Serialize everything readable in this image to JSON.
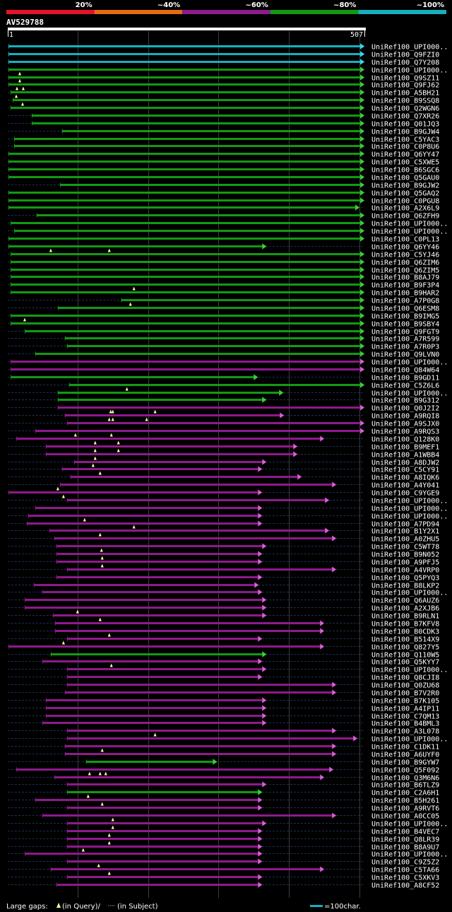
{
  "header": {
    "query_id": "AV529788",
    "ruler_start": "1",
    "ruler_end": "507",
    "ruler_min": 1,
    "ruler_max": 507,
    "scale": [
      {
        "label": "20%",
        "color": "#e8112d"
      },
      {
        "label": "~40%",
        "color": "#e46b0f"
      },
      {
        "label": "~60%",
        "color": "#8e1a8c"
      },
      {
        "label": "~80%",
        "color": "#139a13"
      },
      {
        "label": "~100%",
        "color": "#15b0c0"
      }
    ]
  },
  "hits": [
    {
      "name": "UniRef100_UPI000..",
      "color": "cyan",
      "start": 2,
      "end": 507,
      "gaps": []
    },
    {
      "name": "UniRef100_Q9FZI0",
      "color": "cyan",
      "start": 2,
      "end": 507,
      "gaps": []
    },
    {
      "name": "UniRef100_Q7Y208",
      "color": "cyan",
      "start": 2,
      "end": 507,
      "gaps": []
    },
    {
      "name": "UniRef100_UPI000..",
      "color": "green",
      "start": 2,
      "end": 507,
      "gaps": []
    },
    {
      "name": "UniRef100_Q9SZ11",
      "color": "green",
      "start": 2,
      "end": 507,
      "gaps": [
        18
      ]
    },
    {
      "name": "UniRef100_Q9FJ62",
      "color": "green",
      "start": 2,
      "end": 507,
      "gaps": [
        18
      ]
    },
    {
      "name": "UniRef100_A5BH21",
      "color": "green",
      "start": 5,
      "end": 507,
      "gaps": [
        14,
        23
      ]
    },
    {
      "name": "UniRef100_B9SSQ8",
      "color": "green",
      "start": 8,
      "end": 507,
      "gaps": [
        13
      ]
    },
    {
      "name": "UniRef100_Q2WGN6",
      "color": "green",
      "start": 5,
      "end": 507,
      "gaps": [
        22
      ]
    },
    {
      "name": "UniRef100_Q7XR26",
      "color": "green",
      "start": 35,
      "end": 507,
      "gaps": []
    },
    {
      "name": "UniRef100_Q01JQ3",
      "color": "green",
      "start": 35,
      "end": 507,
      "gaps": []
    },
    {
      "name": "UniRef100_B9GJW4",
      "color": "green",
      "start": 78,
      "end": 507,
      "gaps": []
    },
    {
      "name": "UniRef100_C5YAC3",
      "color": "green",
      "start": 10,
      "end": 507,
      "gaps": []
    },
    {
      "name": "UniRef100_C0P8U6",
      "color": "green",
      "start": 10,
      "end": 507,
      "gaps": []
    },
    {
      "name": "UniRef100_Q6YY47",
      "color": "green",
      "start": 2,
      "end": 507,
      "gaps": []
    },
    {
      "name": "UniRef100_C5XWE5",
      "color": "green",
      "start": 2,
      "end": 507,
      "gaps": []
    },
    {
      "name": "UniRef100_B6SGC6",
      "color": "green",
      "start": 2,
      "end": 507,
      "gaps": []
    },
    {
      "name": "UniRef100_Q5GAU0",
      "color": "green",
      "start": 2,
      "end": 507,
      "gaps": []
    },
    {
      "name": "UniRef100_B9GJW2",
      "color": "green",
      "start": 75,
      "end": 507,
      "gaps": []
    },
    {
      "name": "UniRef100_Q5GAQ2",
      "color": "green",
      "start": 2,
      "end": 507,
      "gaps": []
    },
    {
      "name": "UniRef100_C0PGU8",
      "color": "green",
      "start": 2,
      "end": 507,
      "gaps": []
    },
    {
      "name": "UniRef100_A2X6L9",
      "color": "green",
      "start": 2,
      "end": 500,
      "gaps": []
    },
    {
      "name": "UniRef100_Q6ZFH9",
      "color": "green",
      "start": 42,
      "end": 507,
      "gaps": []
    },
    {
      "name": "UniRef100_UPI000..",
      "color": "green",
      "start": 5,
      "end": 507,
      "gaps": []
    },
    {
      "name": "UniRef100_UPI000..",
      "color": "green",
      "start": 10,
      "end": 507,
      "gaps": []
    },
    {
      "name": "UniRef100_C0PL13",
      "color": "green",
      "start": 2,
      "end": 507,
      "gaps": []
    },
    {
      "name": "UniRef100_Q6YY46",
      "color": "green",
      "start": 2,
      "end": 368,
      "gaps": []
    },
    {
      "name": "UniRef100_C5YJ46",
      "color": "green",
      "start": 5,
      "end": 507,
      "gaps": [
        62,
        145
      ]
    },
    {
      "name": "UniRef100_Q6ZIM6",
      "color": "green",
      "start": 5,
      "end": 507,
      "gaps": []
    },
    {
      "name": "UniRef100_Q6ZIM5",
      "color": "green",
      "start": 5,
      "end": 507,
      "gaps": []
    },
    {
      "name": "UniRef100_B8AJ79",
      "color": "green",
      "start": 5,
      "end": 507,
      "gaps": []
    },
    {
      "name": "UniRef100_B9F3P4",
      "color": "green",
      "start": 5,
      "end": 507,
      "gaps": []
    },
    {
      "name": "UniRef100_B9HAR2",
      "color": "green",
      "start": 5,
      "end": 507,
      "gaps": [
        180
      ]
    },
    {
      "name": "UniRef100_A7P0G8",
      "color": "green",
      "start": 162,
      "end": 507,
      "gaps": []
    },
    {
      "name": "UniRef100_Q6ESM8",
      "color": "green",
      "start": 72,
      "end": 507,
      "gaps": [
        175
      ]
    },
    {
      "name": "UniRef100_B9IMG5",
      "color": "green",
      "start": 5,
      "end": 507,
      "gaps": []
    },
    {
      "name": "UniRef100_B9SBY4",
      "color": "green",
      "start": 5,
      "end": 507,
      "gaps": [
        25
      ]
    },
    {
      "name": "UniRef100_Q9FGT9",
      "color": "green",
      "start": 25,
      "end": 507,
      "gaps": []
    },
    {
      "name": "UniRef100_A7R599",
      "color": "green",
      "start": 82,
      "end": 507,
      "gaps": []
    },
    {
      "name": "UniRef100_A7R0P3",
      "color": "green",
      "start": 85,
      "end": 507,
      "gaps": []
    },
    {
      "name": "UniRef100_Q9LVN0",
      "color": "green",
      "start": 40,
      "end": 507,
      "gaps": []
    },
    {
      "name": "UniRef100_UPI000..",
      "color": "purple",
      "start": 5,
      "end": 507,
      "gaps": []
    },
    {
      "name": "UniRef100_Q84W64",
      "color": "purple",
      "start": 5,
      "end": 507,
      "gaps": []
    },
    {
      "name": "UniRef100_B9GD11",
      "color": "green",
      "start": 5,
      "end": 356,
      "gaps": []
    },
    {
      "name": "UniRef100_C5Z6L6",
      "color": "green",
      "start": 88,
      "end": 507,
      "gaps": []
    },
    {
      "name": "UniRef100_UPI000..",
      "color": "green",
      "start": 72,
      "end": 392,
      "gaps": [
        170
      ]
    },
    {
      "name": "UniRef100_B9G312",
      "color": "green",
      "start": 72,
      "end": 368,
      "gaps": []
    },
    {
      "name": "UniRef100_Q0J2I2",
      "color": "purple",
      "start": 72,
      "end": 507,
      "gaps": []
    },
    {
      "name": "UniRef100_A9RQI8",
      "color": "purple",
      "start": 82,
      "end": 393,
      "gaps": [
        147,
        150,
        210
      ]
    },
    {
      "name": "UniRef100_A9SJX0",
      "color": "purple",
      "start": 85,
      "end": 507,
      "gaps": [
        145,
        150,
        198
      ]
    },
    {
      "name": "UniRef100_A9RQS3",
      "color": "purple",
      "start": 40,
      "end": 507,
      "gaps": []
    },
    {
      "name": "UniRef100_Q128K0",
      "color": "purple",
      "start": 13,
      "end": 450,
      "gaps": [
        97,
        148
      ]
    },
    {
      "name": "UniRef100_B9MEF1",
      "color": "purple",
      "start": 55,
      "end": 412,
      "gaps": [
        125,
        158
      ]
    },
    {
      "name": "UniRef100_A1WBB4",
      "color": "purple",
      "start": 55,
      "end": 412,
      "gaps": [
        125,
        158
      ]
    },
    {
      "name": "UniRef100_A8DJW2",
      "color": "purple",
      "start": 95,
      "end": 368,
      "gaps": [
        125
      ]
    },
    {
      "name": "UniRef100_C5CY91",
      "color": "purple",
      "start": 78,
      "end": 362,
      "gaps": [
        122
      ]
    },
    {
      "name": "UniRef100_A8IQK6",
      "color": "purple",
      "start": 90,
      "end": 418,
      "gaps": [
        132
      ]
    },
    {
      "name": "UniRef100_A4Y041",
      "color": "purple",
      "start": 75,
      "end": 467,
      "gaps": []
    },
    {
      "name": "UniRef100_C9YGE9",
      "color": "purple",
      "start": 2,
      "end": 362,
      "gaps": [
        72
      ]
    },
    {
      "name": "UniRef100_UPI000..",
      "color": "purple",
      "start": 85,
      "end": 457,
      "gaps": [
        80
      ]
    },
    {
      "name": "UniRef100_UPI000..",
      "color": "purple",
      "start": 40,
      "end": 362,
      "gaps": []
    },
    {
      "name": "UniRef100_UPI000..",
      "color": "purple",
      "start": 30,
      "end": 362,
      "gaps": []
    },
    {
      "name": "UniRef100_A7PD94",
      "color": "purple",
      "start": 28,
      "end": 362,
      "gaps": [
        110
      ]
    },
    {
      "name": "UniRef100_B1Y2X1",
      "color": "purple",
      "start": 60,
      "end": 457,
      "gaps": [
        180
      ]
    },
    {
      "name": "UniRef100_A0ZHU5",
      "color": "purple",
      "start": 67,
      "end": 467,
      "gaps": [
        132
      ]
    },
    {
      "name": "UniRef100_C5WT78",
      "color": "purple",
      "start": 70,
      "end": 368,
      "gaps": []
    },
    {
      "name": "UniRef100_B9N052",
      "color": "purple",
      "start": 70,
      "end": 362,
      "gaps": [
        134
      ]
    },
    {
      "name": "UniRef100_A9PFJ5",
      "color": "purple",
      "start": 70,
      "end": 362,
      "gaps": [
        135
      ]
    },
    {
      "name": "UniRef100_A4VRP0",
      "color": "purple",
      "start": 85,
      "end": 467,
      "gaps": [
        135
      ]
    },
    {
      "name": "UniRef100_Q5PYQ3",
      "color": "purple",
      "start": 70,
      "end": 362,
      "gaps": []
    },
    {
      "name": "UniRef100_B8LKP2",
      "color": "purple",
      "start": 38,
      "end": 357,
      "gaps": []
    },
    {
      "name": "UniRef100_UPI000..",
      "color": "purple",
      "start": 50,
      "end": 362,
      "gaps": []
    },
    {
      "name": "UniRef100_Q6AUZ6",
      "color": "purple",
      "start": 25,
      "end": 368,
      "gaps": []
    },
    {
      "name": "UniRef100_A2XJB6",
      "color": "purple",
      "start": 25,
      "end": 368,
      "gaps": []
    },
    {
      "name": "UniRef100_B9RLN1",
      "color": "purple",
      "start": 65,
      "end": 368,
      "gaps": [
        100
      ]
    },
    {
      "name": "UniRef100_B7KFV8",
      "color": "purple",
      "start": 68,
      "end": 450,
      "gaps": [
        132
      ]
    },
    {
      "name": "UniRef100_B0CDK3",
      "color": "purple",
      "start": 68,
      "end": 450,
      "gaps": []
    },
    {
      "name": "UniRef100_B514X9",
      "color": "purple",
      "start": 85,
      "end": 362,
      "gaps": [
        145
      ]
    },
    {
      "name": "UniRef100_Q827Y5",
      "color": "purple",
      "start": 2,
      "end": 450,
      "gaps": [
        80
      ]
    },
    {
      "name": "UniRef100_Q110W5",
      "color": "green",
      "start": 62,
      "end": 368,
      "gaps": []
    },
    {
      "name": "UniRef100_Q5KYY7",
      "color": "purple",
      "start": 50,
      "end": 362,
      "gaps": []
    },
    {
      "name": "UniRef100_UPI000..",
      "color": "purple",
      "start": 85,
      "end": 368,
      "gaps": [
        148
      ]
    },
    {
      "name": "UniRef100_Q8CJI8",
      "color": "purple",
      "start": 85,
      "end": 362,
      "gaps": []
    },
    {
      "name": "UniRef100_Q0ZU68",
      "color": "purple",
      "start": 85,
      "end": 467,
      "gaps": []
    },
    {
      "name": "UniRef100_B7V2R0",
      "color": "purple",
      "start": 82,
      "end": 467,
      "gaps": []
    },
    {
      "name": "UniRef100_B7K105",
      "color": "purple",
      "start": 55,
      "end": 368,
      "gaps": []
    },
    {
      "name": "UniRef100_A4IP11",
      "color": "purple",
      "start": 55,
      "end": 368,
      "gaps": []
    },
    {
      "name": "UniRef100_C7QM13",
      "color": "purple",
      "start": 55,
      "end": 368,
      "gaps": []
    },
    {
      "name": "UniRef100_B4BML3",
      "color": "purple",
      "start": 50,
      "end": 368,
      "gaps": []
    },
    {
      "name": "UniRef100_A3L078",
      "color": "purple",
      "start": 85,
      "end": 467,
      "gaps": []
    },
    {
      "name": "UniRef100_UPI000..",
      "color": "purple",
      "start": 85,
      "end": 497,
      "gaps": [
        210
      ]
    },
    {
      "name": "UniRef100_C1DK11",
      "color": "purple",
      "start": 82,
      "end": 467,
      "gaps": []
    },
    {
      "name": "UniRef100_A6UYF0",
      "color": "purple",
      "start": 82,
      "end": 467,
      "gaps": [
        135
      ]
    },
    {
      "name": "UniRef100_B9GYW7",
      "color": "green",
      "start": 112,
      "end": 298,
      "gaps": []
    },
    {
      "name": "UniRef100_Q5F092",
      "color": "purple",
      "start": 13,
      "end": 463,
      "gaps": []
    },
    {
      "name": "UniRef100_Q3M6N6",
      "color": "purple",
      "start": 67,
      "end": 450,
      "gaps": [
        117,
        132,
        140
      ]
    },
    {
      "name": "UniRef100_B6TLZ9",
      "color": "purple",
      "start": 85,
      "end": 368,
      "gaps": []
    },
    {
      "name": "UniRef100_C2A6H1",
      "color": "green",
      "start": 85,
      "end": 362,
      "gaps": []
    },
    {
      "name": "UniRef100_B5H261",
      "color": "purple",
      "start": 40,
      "end": 362,
      "gaps": [
        115
      ]
    },
    {
      "name": "UniRef100_A9RVT6",
      "color": "purple",
      "start": 85,
      "end": 362,
      "gaps": [
        135
      ]
    },
    {
      "name": "UniRef100_A0CC05",
      "color": "purple",
      "start": 50,
      "end": 467,
      "gaps": []
    },
    {
      "name": "UniRef100_UPI000..",
      "color": "purple",
      "start": 85,
      "end": 368,
      "gaps": [
        150
      ]
    },
    {
      "name": "UniRef100_B4VEC7",
      "color": "purple",
      "start": 85,
      "end": 362,
      "gaps": [
        150
      ]
    },
    {
      "name": "UniRef100_Q8LR39",
      "color": "purple",
      "start": 85,
      "end": 362,
      "gaps": [
        145
      ]
    },
    {
      "name": "UniRef100_B8A9U7",
      "color": "purple",
      "start": 85,
      "end": 362,
      "gaps": [
        145
      ]
    },
    {
      "name": "UniRef100_UPI000..",
      "color": "purple",
      "start": 25,
      "end": 362,
      "gaps": [
        108
      ]
    },
    {
      "name": "UniRef100_C9Z5Z2",
      "color": "purple",
      "start": 85,
      "end": 362,
      "gaps": []
    },
    {
      "name": "UniRef100_C5TA66",
      "color": "purple",
      "start": 62,
      "end": 450,
      "gaps": [
        130
      ]
    },
    {
      "name": "UniRef100_C5XKV3",
      "color": "purple",
      "start": 85,
      "end": 362,
      "gaps": [
        145
      ]
    },
    {
      "name": "UniRef100_A8CF52",
      "color": "purple",
      "start": 70,
      "end": 362,
      "gaps": []
    }
  ],
  "footer": {
    "gaps_label": "Large gaps:",
    "query_legend": "(in Query)/",
    "subject_legend": "(in Subject)",
    "scale_label": "=100char.",
    "scale_color": "#15b0c0"
  },
  "colors": {
    "cyan": "#15b0c0",
    "green": "#139a13",
    "purple": "#8e1a8c",
    "cyan_head": "#3fd8e8",
    "green_head": "#3fcf3f",
    "purple_head": "#d36ad1",
    "gap_marker": "#ffffa0",
    "grid": "#3c3c3c",
    "dashed_track": "#1e2c55"
  }
}
